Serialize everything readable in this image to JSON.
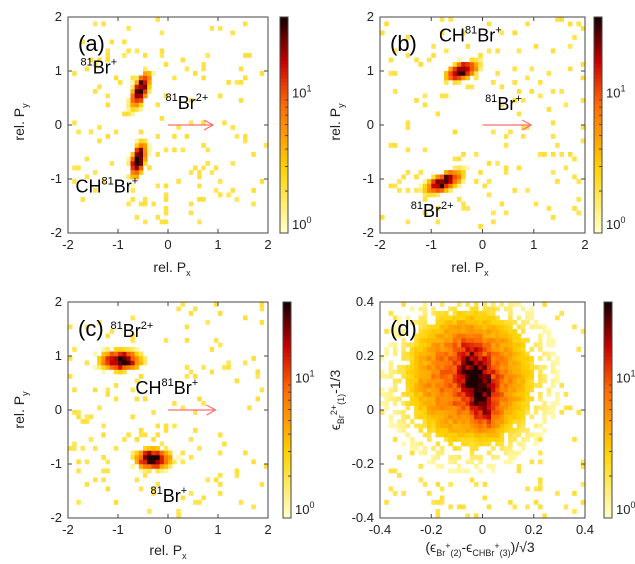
{
  "chart_data": [
    {
      "type": "heatmap",
      "panel_label": "(a)",
      "xlabel": "rel. P",
      "xlabel_sub": "x",
      "ylabel": "rel. P",
      "ylabel_sub": "y",
      "xlim": [
        -2,
        2
      ],
      "ylim": [
        -2,
        2
      ],
      "xticks": [
        "-2",
        "-1",
        "0",
        "1",
        "2"
      ],
      "yticks": [
        "-2",
        "-1",
        "0",
        "1",
        "2"
      ],
      "colorbar": {
        "scale": "log",
        "ticks": [
          "10",
          "10"
        ],
        "tick_exponents": [
          "0",
          "1"
        ]
      },
      "clusters": [
        {
          "x": -0.55,
          "y": 0.65,
          "sx": 0.08,
          "sy": 0.14,
          "rho": 0.6,
          "weight": 1.0
        },
        {
          "x": -0.6,
          "y": -0.65,
          "sx": 0.07,
          "sy": 0.14,
          "rho": 0.5,
          "weight": 1.0
        }
      ],
      "arrow": {
        "x0": 0.0,
        "y0": 0.0,
        "x1": 0.9,
        "y1": 0.0
      },
      "annotations": [
        {
          "pre": "81",
          "text": "Br",
          "post_sup": "+",
          "x": -1.75,
          "y": 0.95
        },
        {
          "pre": "81",
          "text": "Br",
          "post_sup": "2+",
          "x": -0.05,
          "y": 0.3
        },
        {
          "pre": "",
          "text": "CH",
          "mid_sup": "81",
          "text2": "Br",
          "post_sup": "+",
          "x": -1.85,
          "y": -1.25
        }
      ]
    },
    {
      "type": "heatmap",
      "panel_label": "(b)",
      "xlabel": "rel. P",
      "xlabel_sub": "x",
      "ylabel": "rel. P",
      "ylabel_sub": "y",
      "xlim": [
        -2,
        2
      ],
      "ylim": [
        -2,
        2
      ],
      "xticks": [
        "-2",
        "-1",
        "0",
        "1",
        "2"
      ],
      "yticks": [
        "-2",
        "-1",
        "0",
        "1",
        "2"
      ],
      "colorbar": {
        "scale": "log",
        "ticks": [
          "10",
          "10"
        ],
        "tick_exponents": [
          "0",
          "1"
        ]
      },
      "clusters": [
        {
          "x": -0.4,
          "y": 1.0,
          "sx": 0.13,
          "sy": 0.08,
          "rho": 0.5,
          "weight": 1.0
        },
        {
          "x": -0.75,
          "y": -1.05,
          "sx": 0.15,
          "sy": 0.09,
          "rho": 0.6,
          "weight": 1.0
        }
      ],
      "arrow": {
        "x0": 0.0,
        "y0": 0.0,
        "x1": 0.95,
        "y1": 0.0
      },
      "annotations": [
        {
          "pre": "",
          "text": "CH",
          "mid_sup": "81",
          "text2": "Br",
          "post_sup": "+",
          "x": -0.85,
          "y": 1.55
        },
        {
          "pre": "81",
          "text": "Br",
          "post_sup": "+",
          "x": 0.05,
          "y": 0.28
        },
        {
          "pre": "81",
          "text": "Br",
          "post_sup": "2+",
          "x": -1.4,
          "y": -1.7
        }
      ]
    },
    {
      "type": "heatmap",
      "panel_label": "(c)",
      "xlabel": "rel. P",
      "xlabel_sub": "x",
      "ylabel": "rel. P",
      "ylabel_sub": "y",
      "xlim": [
        -2,
        2
      ],
      "ylim": [
        -2,
        2
      ],
      "xticks": [
        "-2",
        "-1",
        "0",
        "1",
        "2"
      ],
      "yticks": [
        "-2",
        "-1",
        "0",
        "1",
        "2"
      ],
      "colorbar": {
        "scale": "log",
        "ticks": [
          "10",
          "10"
        ],
        "tick_exponents": [
          "0",
          "1"
        ]
      },
      "clusters": [
        {
          "x": -0.95,
          "y": 0.92,
          "sx": 0.17,
          "sy": 0.08,
          "rho": 0.0,
          "weight": 1.0
        },
        {
          "x": -0.3,
          "y": -0.9,
          "sx": 0.15,
          "sy": 0.08,
          "rho": 0.0,
          "weight": 1.0
        }
      ],
      "arrow": {
        "x0": 0.0,
        "y0": 0.0,
        "x1": 0.95,
        "y1": 0.0
      },
      "annotations": [
        {
          "pre": "81",
          "text": "Br",
          "post_sup": "2+",
          "x": -1.15,
          "y": 1.35
        },
        {
          "pre": "",
          "text": "CH",
          "mid_sup": "81",
          "text2": "Br",
          "post_sup": "+",
          "x": -0.65,
          "y": 0.3
        },
        {
          "pre": "81",
          "text": "Br",
          "post_sup": "+",
          "x": -0.35,
          "y": -1.7
        }
      ]
    },
    {
      "type": "heatmap",
      "panel_label": "(d)",
      "xlabel": "(ϵ",
      "xlabel_sub1": "Br",
      "xlabel_sup1": "+",
      "xlabel_sub1b": "(2)",
      "xlabel_mid": "-ϵ",
      "xlabel_sub2": "CHBr",
      "xlabel_sup2": "+",
      "xlabel_sub2b": "(3)",
      "xlabel_tail": ")/√3",
      "ylabel": "ϵ",
      "ylabel_sub": "Br",
      "ylabel_sup": "2+",
      "ylabel_sub2": "(1)",
      "ylabel_tail": "-1/3",
      "xlim": [
        -0.4,
        0.4
      ],
      "ylim": [
        -0.4,
        0.4
      ],
      "xticks": [
        "-0.4",
        "-0.2",
        "0",
        "0.2",
        "0.4"
      ],
      "yticks": [
        "-0.4",
        "-0.2",
        "0",
        "0.2",
        "0.4"
      ],
      "colorbar": {
        "scale": "log",
        "ticks": [
          "10",
          "10"
        ],
        "tick_exponents": [
          "0",
          "1"
        ]
      },
      "clusters": [
        {
          "x": -0.02,
          "y": 0.1,
          "sx": 0.035,
          "sy": 0.07,
          "rho": -0.45,
          "weight": 1.0
        },
        {
          "x": -0.05,
          "y": 0.12,
          "sx": 0.12,
          "sy": 0.12,
          "rho": 0.0,
          "weight": 0.25
        }
      ],
      "annotations": []
    }
  ],
  "colors": {
    "map_low": "#ffffc8",
    "map_mid1": "#ffd200",
    "map_mid2": "#ff6a00",
    "map_mid3": "#c80000",
    "map_high": "#1a0000",
    "arrow": "#ff6e6e"
  }
}
